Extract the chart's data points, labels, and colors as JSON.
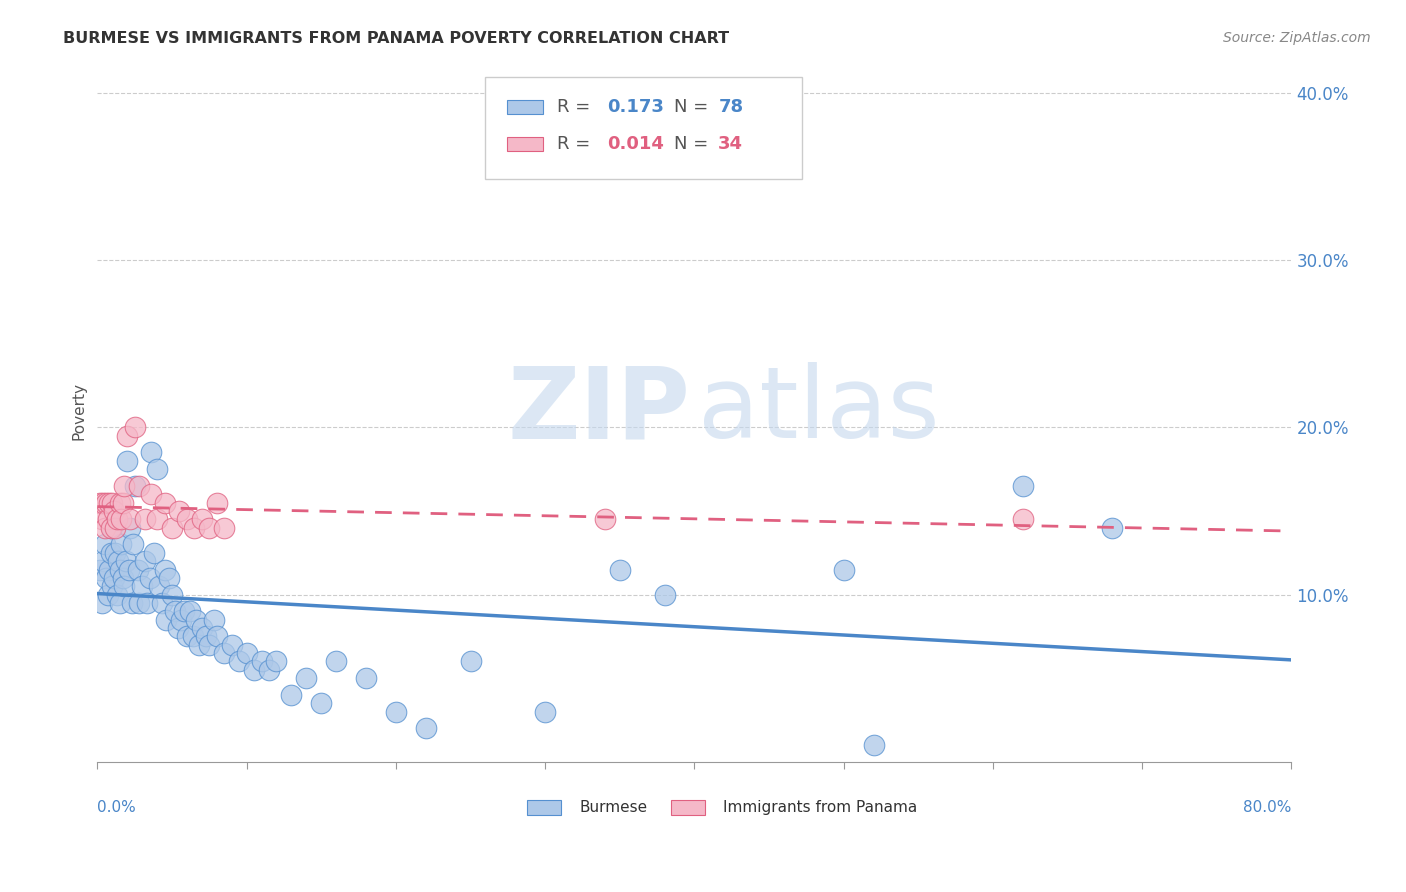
{
  "title": "BURMESE VS IMMIGRANTS FROM PANAMA POVERTY CORRELATION CHART",
  "source": "Source: ZipAtlas.com",
  "ylabel": "Poverty",
  "watermark_zip": "ZIP",
  "watermark_atlas": "atlas",
  "legend_burmese": "Burmese",
  "legend_panama": "Immigrants from Panama",
  "burmese_R": "0.173",
  "burmese_N": "78",
  "panama_R": "0.014",
  "panama_N": "34",
  "burmese_color": "#adc8e8",
  "burmese_line_color": "#4a86c8",
  "burmese_edge_color": "#5590d0",
  "panama_color": "#f5b8c8",
  "panama_line_color": "#e06080",
  "panama_edge_color": "#e06080",
  "background_color": "#ffffff",
  "grid_color": "#cccccc",
  "burmese_x": [
    0.002,
    0.003,
    0.004,
    0.005,
    0.006,
    0.007,
    0.008,
    0.009,
    0.01,
    0.01,
    0.011,
    0.012,
    0.013,
    0.014,
    0.015,
    0.015,
    0.016,
    0.017,
    0.018,
    0.019,
    0.02,
    0.021,
    0.022,
    0.023,
    0.024,
    0.025,
    0.027,
    0.028,
    0.03,
    0.032,
    0.033,
    0.035,
    0.036,
    0.038,
    0.04,
    0.041,
    0.043,
    0.045,
    0.046,
    0.048,
    0.05,
    0.052,
    0.054,
    0.056,
    0.058,
    0.06,
    0.062,
    0.064,
    0.066,
    0.068,
    0.07,
    0.073,
    0.075,
    0.078,
    0.08,
    0.085,
    0.09,
    0.095,
    0.1,
    0.105,
    0.11,
    0.115,
    0.12,
    0.13,
    0.14,
    0.15,
    0.16,
    0.18,
    0.2,
    0.22,
    0.25,
    0.3,
    0.35,
    0.38,
    0.5,
    0.52,
    0.62,
    0.68
  ],
  "burmese_y": [
    0.115,
    0.095,
    0.12,
    0.13,
    0.11,
    0.1,
    0.115,
    0.125,
    0.105,
    0.14,
    0.11,
    0.125,
    0.1,
    0.12,
    0.115,
    0.095,
    0.13,
    0.11,
    0.105,
    0.12,
    0.18,
    0.115,
    0.14,
    0.095,
    0.13,
    0.165,
    0.115,
    0.095,
    0.105,
    0.12,
    0.095,
    0.11,
    0.185,
    0.125,
    0.175,
    0.105,
    0.095,
    0.115,
    0.085,
    0.11,
    0.1,
    0.09,
    0.08,
    0.085,
    0.09,
    0.075,
    0.09,
    0.075,
    0.085,
    0.07,
    0.08,
    0.075,
    0.07,
    0.085,
    0.075,
    0.065,
    0.07,
    0.06,
    0.065,
    0.055,
    0.06,
    0.055,
    0.06,
    0.04,
    0.05,
    0.035,
    0.06,
    0.05,
    0.03,
    0.02,
    0.06,
    0.03,
    0.115,
    0.1,
    0.115,
    0.01,
    0.165,
    0.14
  ],
  "panama_x": [
    0.002,
    0.003,
    0.004,
    0.005,
    0.006,
    0.007,
    0.008,
    0.009,
    0.01,
    0.011,
    0.012,
    0.013,
    0.015,
    0.016,
    0.017,
    0.018,
    0.02,
    0.022,
    0.025,
    0.028,
    0.032,
    0.036,
    0.04,
    0.045,
    0.05,
    0.055,
    0.06,
    0.065,
    0.07,
    0.075,
    0.08,
    0.085,
    0.34,
    0.62
  ],
  "panama_y": [
    0.155,
    0.145,
    0.155,
    0.14,
    0.155,
    0.145,
    0.155,
    0.14,
    0.155,
    0.15,
    0.14,
    0.145,
    0.155,
    0.145,
    0.155,
    0.165,
    0.195,
    0.145,
    0.2,
    0.165,
    0.145,
    0.16,
    0.145,
    0.155,
    0.14,
    0.15,
    0.145,
    0.14,
    0.145,
    0.14,
    0.155,
    0.14,
    0.145,
    0.145
  ],
  "ylim": [
    0.0,
    0.42
  ],
  "xlim": [
    0.0,
    0.8
  ],
  "ytick_positions": [
    0.1,
    0.2,
    0.3,
    0.4
  ],
  "ytick_labels": [
    "10.0%",
    "20.0%",
    "30.0%",
    "40.0%"
  ]
}
